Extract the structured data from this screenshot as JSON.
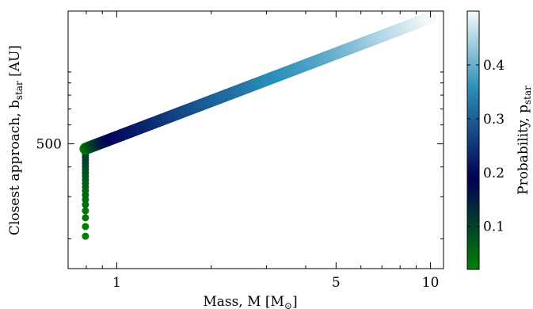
{
  "chart_data": {
    "type": "scatter",
    "xlabel": "Mass, M [M",
    "xlabel_sub": "⊙",
    "xlabel_close": "]",
    "ylabel": "Closest approach, b",
    "ylabel_sub": "star",
    "ylabel_close": " [AU]",
    "x_scale": "log",
    "y_scale": "log",
    "xticks": [
      {
        "value": 1,
        "label": "1"
      },
      {
        "value": 5,
        "label": "5"
      },
      {
        "value": 10,
        "label": "10"
      }
    ],
    "yticks": [
      {
        "value": 500,
        "label": "500"
      }
    ],
    "xlim": [
      0.7,
      11.0
    ],
    "ylim": [
      150,
      1800
    ],
    "grid": false,
    "tick_direction": "in",
    "colorbar": {
      "label": "Probability, p",
      "label_sub": "star",
      "range": [
        0.02,
        0.5
      ],
      "ticks": [
        {
          "value": 0.1,
          "label": "0.1"
        },
        {
          "value": 0.2,
          "label": "0.2"
        },
        {
          "value": 0.3,
          "label": "0.3"
        },
        {
          "value": 0.4,
          "label": "0.4"
        }
      ],
      "colormap": [
        "#008000",
        "#000055",
        "#2a8fb8",
        "#f5f9fb"
      ]
    },
    "series": [
      {
        "relation": "b = 1000 * sqrt(M / 3.5)",
        "x": [
          0.79,
          0.8,
          0.82,
          0.85,
          0.9,
          1.0,
          1.5,
          2.0,
          3.0,
          5.0,
          7.0,
          10.0
        ],
        "y": [
          475,
          478,
          484,
          493,
          507,
          535,
          655,
          756,
          926,
          1195,
          1414,
          1690
        ],
        "color_value": [
          0.02,
          0.03,
          0.06,
          0.1,
          0.15,
          0.2,
          0.26,
          0.3,
          0.35,
          0.4,
          0.45,
          0.5
        ],
        "lower_cutoff": 0.795
      }
    ]
  }
}
